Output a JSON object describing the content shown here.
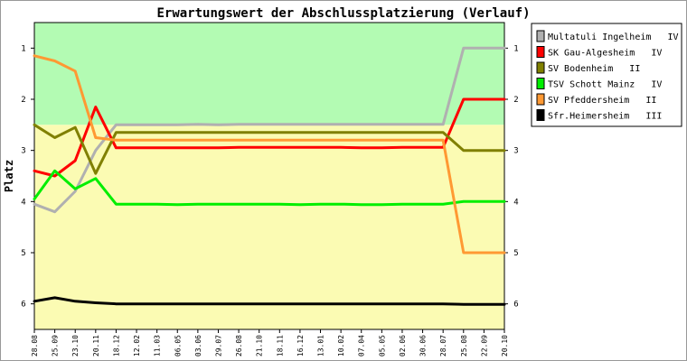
{
  "chart_data": {
    "type": "line",
    "title": "Erwartungswert der Abschlussplatzierung (Verlauf)",
    "xlabel": "",
    "ylabel": "Platz",
    "ylim": [
      0.5,
      6.5
    ],
    "y_inverted": true,
    "yticks": [
      1,
      2,
      3,
      4,
      5,
      6
    ],
    "grid": false,
    "legend_position": "right",
    "bands": [
      {
        "from": 0.5,
        "to": 2.5,
        "color": "#b3fbb3"
      },
      {
        "from": 2.5,
        "to": 6.5,
        "color": "#fbfbb3"
      }
    ],
    "categories": [
      "28.08",
      "25.09",
      "23.10",
      "20.11",
      "18.12",
      "12.02",
      "11.03",
      "06.05",
      "03.06",
      "29.07",
      "26.08",
      "21.10",
      "18.11",
      "16.12",
      "13.01",
      "10.02",
      "07.04",
      "05.05",
      "02.06",
      "30.06",
      "28.07",
      "25.08",
      "22.09",
      "20.10"
    ],
    "series": [
      {
        "name": "Multatuli Ingelheim   IV",
        "color": "#b0b0b0",
        "values": [
          4.05,
          4.2,
          3.8,
          3.0,
          2.5,
          2.5,
          2.5,
          2.5,
          2.49,
          2.5,
          2.49,
          2.49,
          2.49,
          2.49,
          2.49,
          2.49,
          2.49,
          2.49,
          2.49,
          2.49,
          2.49,
          1.0,
          1.0,
          1.0
        ]
      },
      {
        "name": "SK Gau-Algesheim   IV",
        "color": "#ff0000",
        "values": [
          3.4,
          3.5,
          3.2,
          2.15,
          2.95,
          2.95,
          2.95,
          2.95,
          2.95,
          2.95,
          2.94,
          2.94,
          2.94,
          2.94,
          2.94,
          2.94,
          2.95,
          2.95,
          2.94,
          2.94,
          2.94,
          2.0,
          2.0,
          2.0
        ]
      },
      {
        "name": "SV Bodenheim   II",
        "color": "#808000",
        "values": [
          2.5,
          2.75,
          2.55,
          3.45,
          2.65,
          2.65,
          2.65,
          2.65,
          2.65,
          2.65,
          2.65,
          2.65,
          2.65,
          2.65,
          2.65,
          2.65,
          2.65,
          2.65,
          2.65,
          2.65,
          2.65,
          3.0,
          3.0,
          3.0
        ]
      },
      {
        "name": "TSV Schott Mainz   IV",
        "color": "#00ee00",
        "values": [
          3.95,
          3.4,
          3.75,
          3.55,
          4.05,
          4.05,
          4.05,
          4.06,
          4.05,
          4.05,
          4.05,
          4.05,
          4.05,
          4.06,
          4.05,
          4.05,
          4.06,
          4.06,
          4.05,
          4.05,
          4.05,
          4.0,
          4.0,
          4.0
        ]
      },
      {
        "name": "SV Pfeddersheim   II",
        "color": "#ff9933",
        "values": [
          1.15,
          1.25,
          1.45,
          2.75,
          2.8,
          2.8,
          2.8,
          2.8,
          2.8,
          2.8,
          2.8,
          2.8,
          2.8,
          2.8,
          2.8,
          2.8,
          2.8,
          2.8,
          2.8,
          2.8,
          2.8,
          5.0,
          5.0,
          5.0
        ]
      },
      {
        "name": "Sfr.Heimersheim   III",
        "color": "#000000",
        "values": [
          5.95,
          5.88,
          5.95,
          5.98,
          6.0,
          6.0,
          6.0,
          6.0,
          6.0,
          6.0,
          6.0,
          6.0,
          6.0,
          6.0,
          6.0,
          6.0,
          6.0,
          6.0,
          6.0,
          6.0,
          6.0,
          6.01,
          6.01,
          6.01
        ]
      }
    ]
  }
}
